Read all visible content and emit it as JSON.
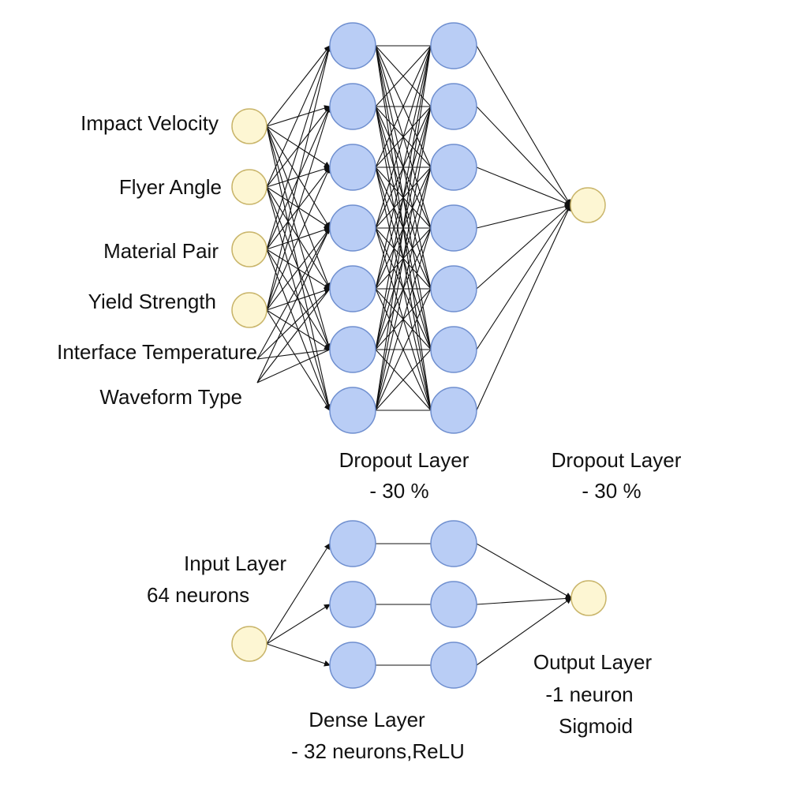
{
  "colors": {
    "input_node_fill": "#fdf6d3",
    "input_node_stroke": "#c9b56a",
    "hidden_node_fill": "#b9cdf5",
    "hidden_node_stroke": "#6f8fcf",
    "edge": "#111111"
  },
  "top_network": {
    "input_features": [
      "Impact Velocity",
      "Flyer Angle",
      "Material Pair",
      "Yield Strength",
      "Interface Temperature",
      "Waveform Type"
    ],
    "hidden_layer_1_neurons": 7,
    "hidden_layer_2_neurons": 7,
    "output_neurons": 1,
    "dropout_label_1": {
      "line1": "Dropout Layer",
      "line2": "- 30 %"
    },
    "dropout_label_2": {
      "line1": "Dropout Layer",
      "line2": "- 30 %"
    }
  },
  "bottom_network": {
    "input_label": {
      "line1": "Input Layer",
      "line2": "64 neurons"
    },
    "dense_label": {
      "line1": "Dense Layer",
      "line2": "- 32 neurons,ReLU"
    },
    "output_label": {
      "line1": "Output Layer",
      "line2": "-1 neuron",
      "line3": "Sigmoid"
    },
    "hidden_layer_1_neurons": 3,
    "hidden_layer_2_neurons": 3
  }
}
